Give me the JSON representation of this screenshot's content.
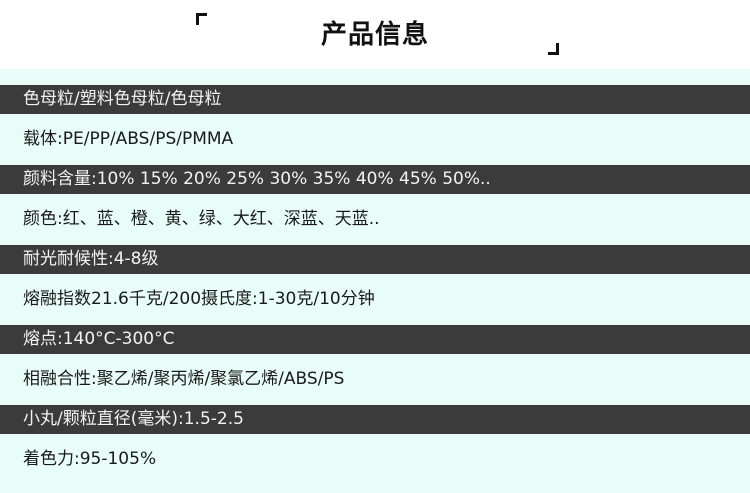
{
  "header": {
    "title": "产品信息"
  },
  "colors": {
    "dark_band": "#3b3b3b",
    "light_band": "#e8fdf7"
  },
  "rows": [
    {
      "text": "色母粒/塑料色母粒/色母粒",
      "style": "dark"
    },
    {
      "text": "载体:PE/PP/ABS/PS/PMMA",
      "style": "light"
    },
    {
      "text": "颜料含量:10% 15% 20% 25% 30% 35% 40% 45% 50%..",
      "style": "dark"
    },
    {
      "text": "颜色:红、蓝、橙、黄、绿、大红、深蓝、天蓝..",
      "style": "light"
    },
    {
      "text": "耐光耐候性:4-8级",
      "style": "dark"
    },
    {
      "text": "熔融指数21.6千克/200摄氏度:1-30克/10分钟",
      "style": "light"
    },
    {
      "text": "熔点:140°C-300°C",
      "style": "dark"
    },
    {
      "text": "相融合性:聚乙烯/聚丙烯/聚氯乙烯/ABS/PS",
      "style": "light"
    },
    {
      "text": "小丸/颗粒直径(毫米):1.5-2.5",
      "style": "dark"
    },
    {
      "text": "着色力:95-105%",
      "style": "light"
    }
  ]
}
